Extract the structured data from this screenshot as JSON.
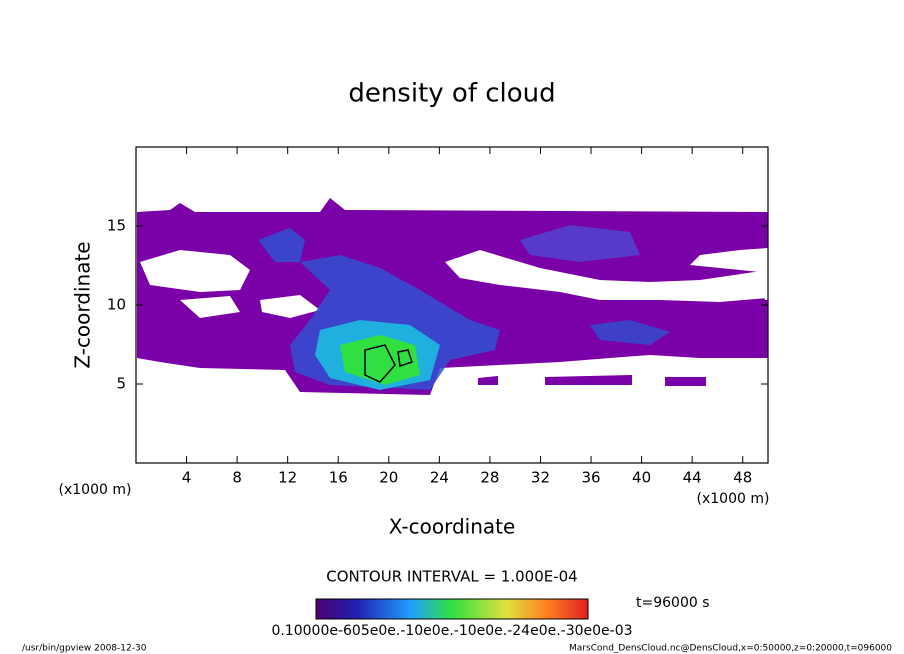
{
  "chart_data": {
    "type": "contour",
    "title": "density of cloud",
    "x_label": "X-coordinate",
    "y_label": "Z-coordinate",
    "x_unit": "(x1000 m)",
    "y_unit": "(x1000 m)",
    "xlim": [
      0,
      50
    ],
    "xticks": [
      4,
      8,
      12,
      16,
      20,
      24,
      28,
      32,
      36,
      40,
      44,
      48
    ],
    "ylim": [
      0,
      20
    ],
    "yticks": [
      5,
      10,
      15
    ],
    "contour_interval": "CONTOUR INTERVAL = 1.000E-04",
    "time": "t=96000 s",
    "colorbar_labels": "0.10000e-605e0e.-10e0e.-10e0e.-24e0e.-30e0e-03",
    "footer_left": "/usr/bin/gpview   2008-12-30",
    "footer_right": "MarsCond_DensCloud.nc@DensCloud,x=0:50000,z=0:20000,t=096000"
  }
}
